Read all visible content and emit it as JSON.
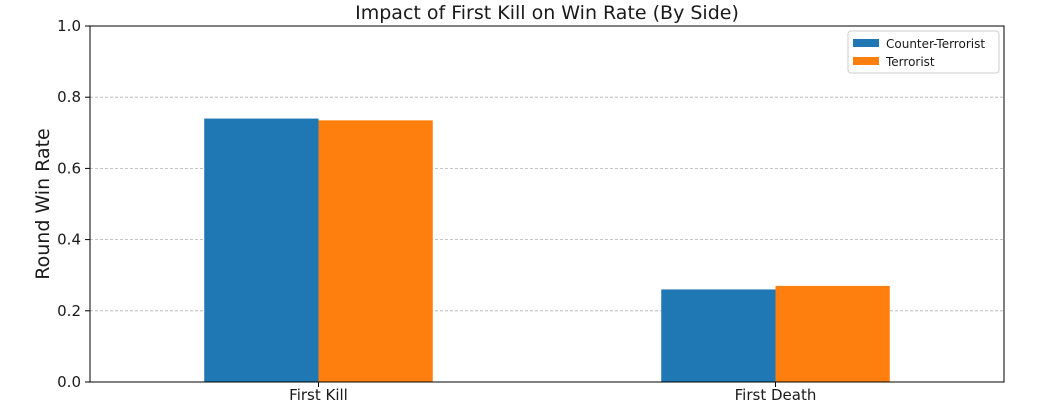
{
  "chart_data": {
    "type": "bar",
    "title": "Impact of First Kill on Win Rate (By Side)",
    "xlabel": "",
    "ylabel": "Round Win Rate",
    "categories": [
      "First Kill",
      "First Death"
    ],
    "series": [
      {
        "name": "Counter-Terrorist",
        "values": [
          0.74,
          0.26
        ],
        "color": "#1f77b4"
      },
      {
        "name": "Terrorist",
        "values": [
          0.735,
          0.27
        ],
        "color": "#ff7f0e"
      }
    ],
    "ylim": [
      0,
      1.0
    ],
    "yticks": [
      "0.0",
      "0.2",
      "0.4",
      "0.6",
      "0.8",
      "1.0"
    ],
    "grid": "horizontal-dashed",
    "legend_position": "top-right"
  }
}
